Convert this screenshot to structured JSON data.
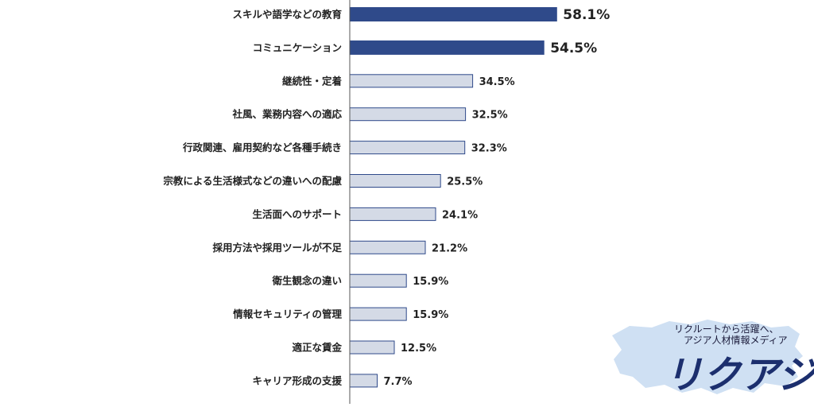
{
  "chart_data": {
    "type": "bar",
    "orientation": "horizontal",
    "categories": [
      "スキルや語学などの教育",
      "コミュニケーション",
      "継続性・定着",
      "社風、業務内容への適応",
      "行政関連、雇用契約など各種手続き",
      "宗教による生活様式などの違いへの配慮",
      "生活面へのサポート",
      "採用方法や採用ツールが不足",
      "衛生観念の違い",
      "情報セキュリティの管理",
      "適正な賃金",
      "キャリア形成の支援"
    ],
    "values": [
      58.1,
      54.5,
      34.5,
      32.5,
      32.3,
      25.5,
      24.1,
      21.2,
      15.9,
      15.9,
      12.5,
      7.7
    ],
    "value_labels": [
      "58.1%",
      "54.5%",
      "34.5%",
      "32.5%",
      "32.3%",
      "25.5%",
      "24.1%",
      "21.2%",
      "15.9%",
      "15.9%",
      "12.5%",
      "7.7%"
    ],
    "highlight_count": 2,
    "xlim": [
      0,
      100
    ],
    "grid": false,
    "colors": {
      "highlight": "#2f4a8a",
      "normal": "#d4dae6",
      "border": "#2f4a8a"
    }
  },
  "logo": {
    "tagline_line1": "リクルートから活躍へ、",
    "tagline_line2": "アジア人材情報メディア",
    "wordmark": "リクアジ",
    "colors": {
      "wordmark": "#1c2f6e",
      "map": "#cfe0f3"
    }
  }
}
